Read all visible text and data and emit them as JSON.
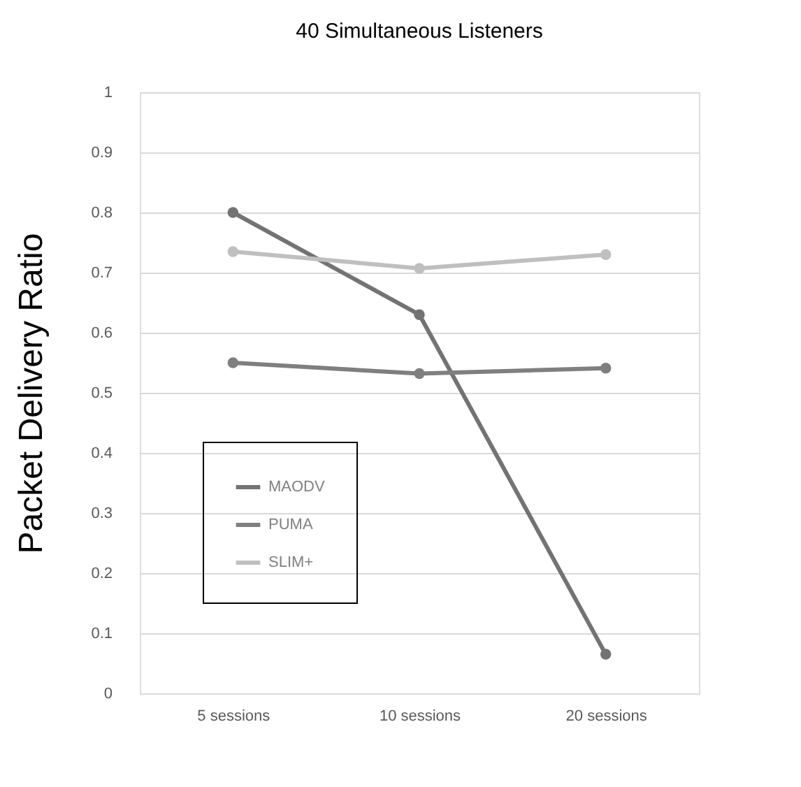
{
  "chart_data": {
    "type": "line",
    "title": "40 Simultaneous Listeners",
    "ylabel": "Packet Delivery Ratio",
    "categories": [
      "5 sessions",
      "10 sessions",
      "20 sessions"
    ],
    "series": [
      {
        "name": "MAODV",
        "color": "#737373",
        "values": [
          0.8,
          0.63,
          0.065
        ]
      },
      {
        "name": "PUMA",
        "color": "#7f7f7f",
        "values": [
          0.55,
          0.532,
          0.541
        ]
      },
      {
        "name": "SLIM+",
        "color": "#bfbfbf",
        "values": [
          0.735,
          0.707,
          0.73
        ]
      }
    ],
    "ylim": [
      0,
      1
    ],
    "yticks": [
      0,
      0.1,
      0.2,
      0.3,
      0.4,
      0.5,
      0.6,
      0.7,
      0.8,
      0.9,
      1
    ],
    "grid": "y",
    "legend": "bottom left",
    "marker": "circle",
    "line_style": "solid"
  }
}
